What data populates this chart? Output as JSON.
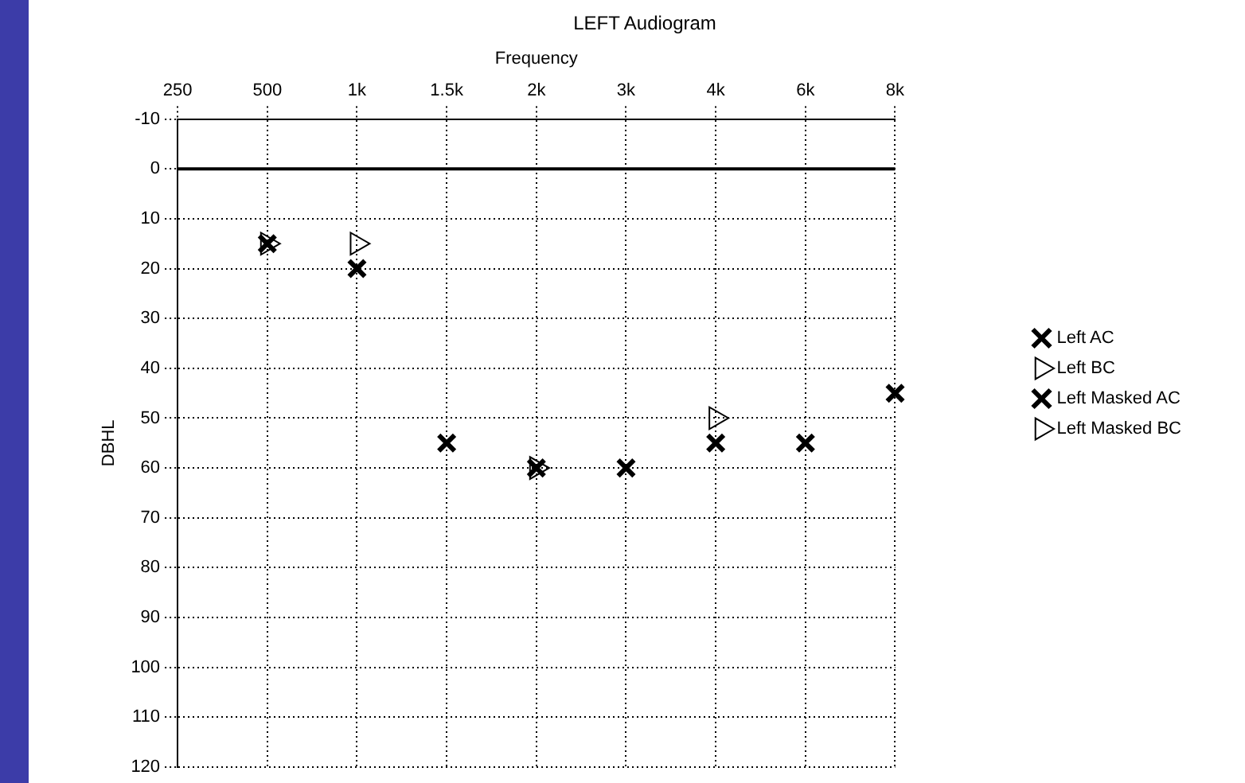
{
  "chart_data": {
    "type": "scatter",
    "title": "LEFT Audiogram",
    "xlabel": "Frequency",
    "ylabel": "DBHL",
    "categories": [
      "250",
      "500",
      "1k",
      "1.5k",
      "2k",
      "3k",
      "4k",
      "6k",
      "8k"
    ],
    "series": [
      {
        "name": "Left AC",
        "color": "#000000",
        "marker": "cross",
        "values": [
          null,
          null,
          null,
          null,
          null,
          null,
          null,
          null,
          null
        ]
      },
      {
        "name": "Left BC",
        "color": "#000000",
        "marker": "triangle",
        "values": [
          null,
          null,
          null,
          null,
          null,
          null,
          null,
          null,
          null
        ]
      },
      {
        "name": "Left Masked AC",
        "color": "#000000",
        "marker": "cross",
        "values": [
          null,
          15,
          20,
          55,
          60,
          60,
          55,
          55,
          45
        ]
      },
      {
        "name": "Left Masked BC",
        "color": "#000000",
        "marker": "triangle",
        "values": [
          null,
          15,
          15,
          null,
          60,
          null,
          50,
          null,
          null
        ]
      }
    ],
    "ylim": [
      120,
      -10
    ],
    "yticks": [
      -10,
      0,
      10,
      20,
      30,
      40,
      50,
      60,
      70,
      80,
      90,
      100,
      110,
      120
    ],
    "ref_lines": [
      {
        "axis": "y",
        "value": 0,
        "color": "#000000"
      }
    ],
    "grid": true,
    "legend": "right"
  }
}
